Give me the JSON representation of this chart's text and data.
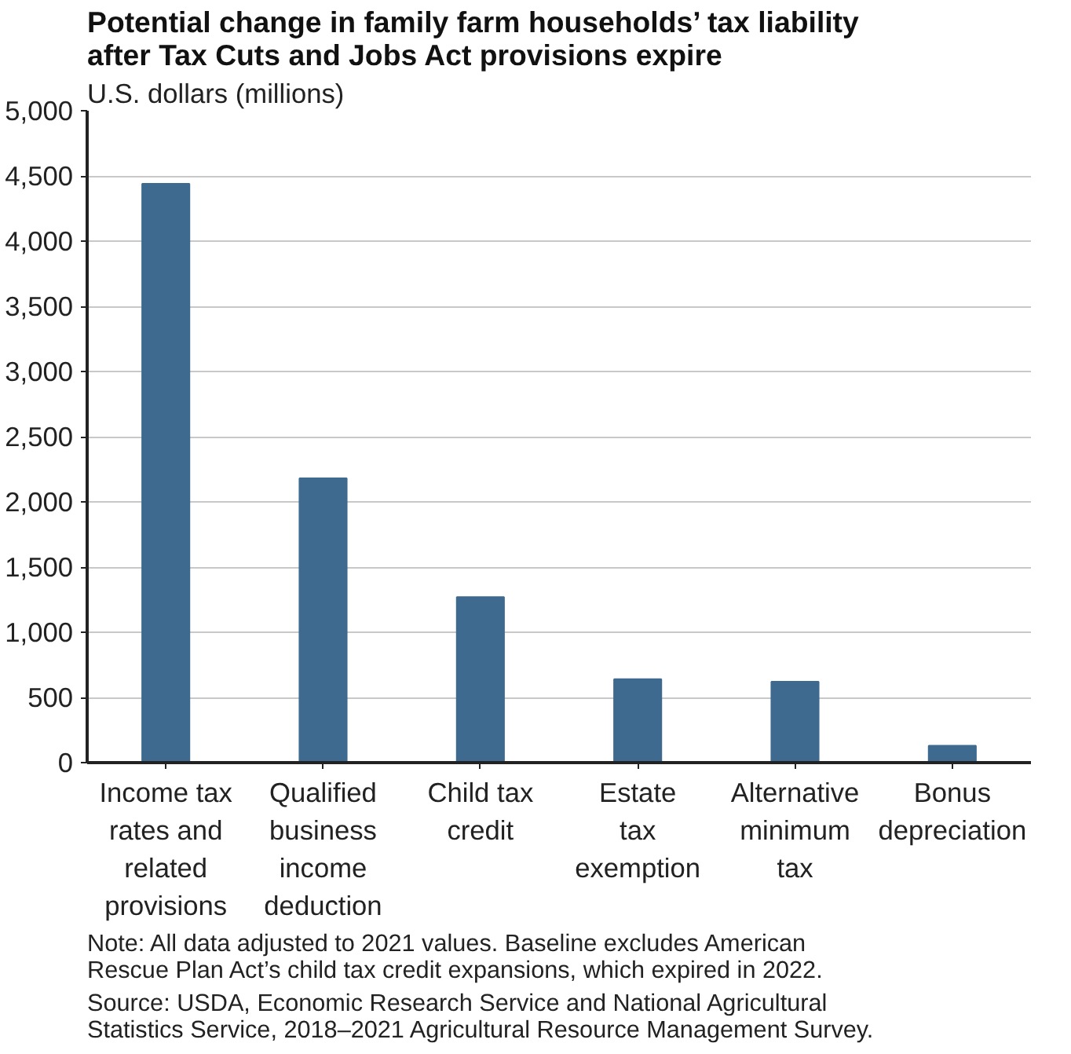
{
  "chart_data": {
    "type": "bar",
    "title": "Potential change in family farm households’ tax liability after Tax Cuts and Jobs Act provisions expire",
    "ylabel": "U.S. dollars (millions)",
    "categories": [
      "Income tax\nrates and\nrelated\nprovisions",
      "Qualified\nbusiness\nincome\ndeduction",
      "Child tax\ncredit",
      "Estate\ntax\nexemption",
      "Alternative\nminimum\ntax",
      "Bonus\ndepreciation"
    ],
    "values": [
      4440,
      2180,
      1270,
      640,
      620,
      130
    ],
    "color": "#3e6a8f",
    "ylim": [
      0,
      5000
    ],
    "yticks": [
      {
        "value": 0,
        "label": "0"
      },
      {
        "value": 500,
        "label": "500"
      },
      {
        "value": 1000,
        "label": "1,000"
      },
      {
        "value": 1500,
        "label": "1,500"
      },
      {
        "value": 2000,
        "label": "2,000"
      },
      {
        "value": 2500,
        "label": "2,500"
      },
      {
        "value": 3000,
        "label": "3,000"
      },
      {
        "value": 3500,
        "label": "3,500"
      },
      {
        "value": 4000,
        "label": "4,000"
      },
      {
        "value": 4500,
        "label": "4,500"
      },
      {
        "value": 5000,
        "label": "5,000"
      }
    ],
    "grid": "y",
    "annotations": [
      "Note: All data adjusted to 2021 values. Baseline excludes American Rescue Plan Act’s child tax credit expansions, which expired in 2022.",
      "Source: USDA, Economic Research Service and National Agricultural Statistics Service, 2018–2021 Agricultural Resource Management Survey."
    ]
  }
}
